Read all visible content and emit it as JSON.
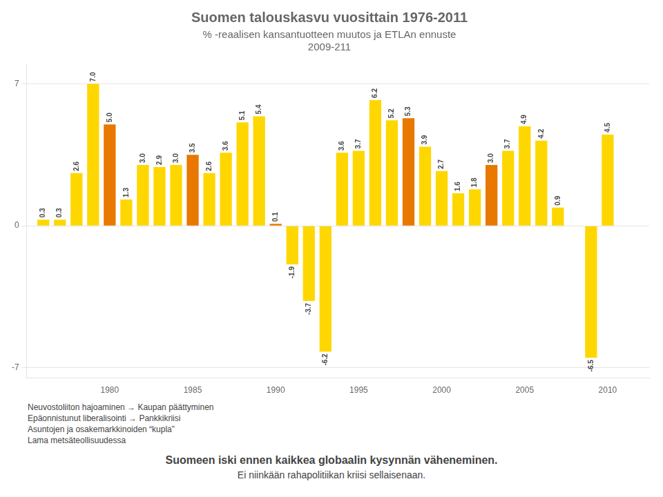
{
  "chart_data": {
    "type": "bar",
    "title": "Suomen talouskasvu vuosittain 1976-2011",
    "subtitle": [
      "% -reaalisen kansantuotteen muutos ja ETLAn ennuste",
      "2009-211"
    ],
    "x": [
      1976,
      1977,
      1978,
      1979,
      1980,
      1981,
      1982,
      1983,
      1984,
      1985,
      1986,
      1987,
      1988,
      1989,
      1990,
      1991,
      1992,
      1993,
      1994,
      1995,
      1996,
      1997,
      1998,
      1999,
      2000,
      2001,
      2002,
      2003,
      2004,
      2005,
      2006,
      2007,
      2008,
      2009,
      2010,
      2011
    ],
    "values": [
      0.3,
      0.3,
      2.6,
      7.0,
      5.0,
      1.3,
      3.0,
      2.9,
      3.0,
      3.5,
      2.6,
      3.6,
      5.1,
      5.4,
      0.1,
      -1.9,
      -3.7,
      -6.2,
      3.6,
      3.7,
      6.2,
      5.2,
      5.3,
      3.9,
      2.7,
      1.6,
      1.8,
      3.0,
      3.7,
      4.9,
      4.2,
      0.9,
      0.0,
      -6.5,
      4.5,
      0.0
    ],
    "value_labels": [
      "0.3",
      "0.3",
      "2.6",
      "7.0",
      "5.0",
      "1.3",
      "3.0",
      "2.9",
      "3.0",
      "3.5",
      "2.6",
      "3.6",
      "5.1",
      "5.4",
      "0.1",
      "-1.9",
      "-3.7",
      "-6.2",
      "3.6",
      "3.7",
      "6.2",
      "5.2",
      "5.3",
      "3.9",
      "2.7",
      "1.6",
      "1.8",
      "3.0",
      "3.7",
      "4.9",
      "4.2",
      "0.9",
      null,
      "-6.5",
      "4.5",
      null
    ],
    "colors": [
      "#FFD700",
      "#FFD700",
      "#FFD700",
      "#FFD700",
      "#E87800",
      "#FFD700",
      "#FFD700",
      "#FFD700",
      "#FFD700",
      "#E87800",
      "#FFD700",
      "#FFD700",
      "#FFD700",
      "#FFD700",
      "#E87800",
      "#FFD700",
      "#FFD700",
      "#FFD700",
      "#FFD700",
      "#FFD700",
      "#FFD700",
      "#FFD700",
      "#E87800",
      "#FFD700",
      "#FFD700",
      "#FFD700",
      "#FFD700",
      "#E87800",
      "#FFD700",
      "#FFD700",
      "#FFD700",
      "#FFD700",
      "#E87800",
      "#FFD700",
      "#FFD700",
      "#FFD700"
    ],
    "data_labels": true,
    "xlim": [
      1975,
      2012.5
    ],
    "xticks": [
      1980,
      1985,
      1990,
      1995,
      2000,
      2005,
      2010
    ],
    "ylim": [
      -7.5,
      8.0
    ],
    "yticks": [
      -7,
      0,
      7
    ],
    "grid": true,
    "annotations": [
      "Neuvostoliiton hajoaminen → Kaupan päättyminen",
      "Epäonnistunut liberalisointi → Pankkikriisi",
      "Asuntojen ja osakemarkkinoiden “kupla”",
      "Lama metsäteollisuudessa"
    ],
    "footer": [
      "Suomeen iski ennen kaikkea globaalin kysynnän väheneminen.",
      "Ei niinkään rahapolitiikan kriisi sellaisenaan."
    ]
  }
}
